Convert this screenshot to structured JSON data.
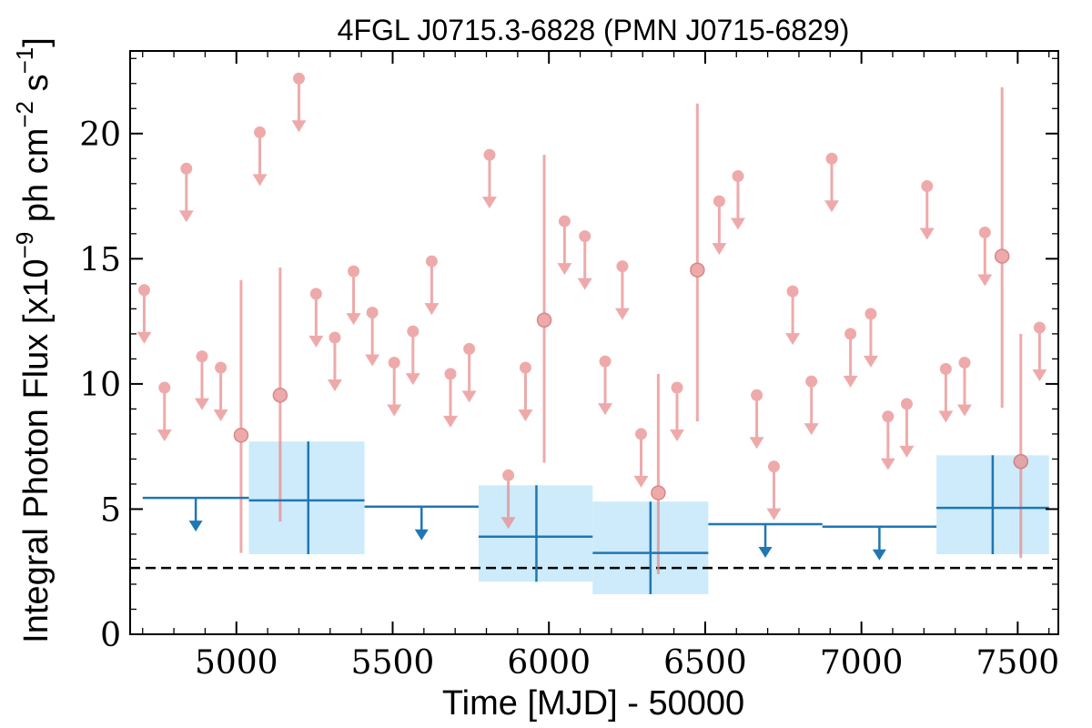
{
  "chart_data": {
    "type": "scatter",
    "title": "4FGL J0715.3-6828 (PMN J0715-6829)",
    "xlabel": "Time [MJD] - 50000",
    "ylabel": {
      "prefix": "Integral Photon Flux [x10",
      "exp1": "−9",
      "mid": " ph cm",
      "exp2": "−2",
      "mid2": " s",
      "exp3": "−1",
      "suffix": "]"
    },
    "xlim": [
      4660,
      7630
    ],
    "ylim": [
      0,
      23.3
    ],
    "xticks": [
      5000,
      5500,
      6000,
      6500,
      7000,
      7500
    ],
    "yticks": [
      0,
      5,
      10,
      15,
      20
    ],
    "baseline": 2.65,
    "colors": {
      "short_bins": "#e88a8a",
      "long_bins": "#1f77b4",
      "band": "#cdebfa",
      "baseline": "#000000"
    },
    "long_bins": [
      {
        "x0": 4700,
        "x1": 5040,
        "y": 5.45,
        "type": "ul"
      },
      {
        "x0": 5040,
        "x1": 5410,
        "y": 5.35,
        "type": "det",
        "xc": 5230,
        "lo": 3.2,
        "hi": 7.7
      },
      {
        "x0": 5410,
        "x1": 5775,
        "y": 5.1,
        "type": "ul"
      },
      {
        "x0": 5775,
        "x1": 6140,
        "y": 3.9,
        "type": "det",
        "xc": 5960,
        "lo": 2.1,
        "hi": 5.95
      },
      {
        "x0": 6140,
        "x1": 6510,
        "y": 3.25,
        "type": "det",
        "xc": 6325,
        "lo": 1.6,
        "hi": 5.3
      },
      {
        "x0": 6510,
        "x1": 6875,
        "y": 4.4,
        "type": "ul"
      },
      {
        "x0": 6875,
        "x1": 7240,
        "y": 4.3,
        "type": "ul"
      },
      {
        "x0": 7240,
        "x1": 7600,
        "y": 5.05,
        "type": "det",
        "xc": 7420,
        "lo": 3.2,
        "hi": 7.15
      }
    ],
    "short_bins_ul": [
      {
        "x": 4705,
        "y": 13.75
      },
      {
        "x": 4770,
        "y": 9.85
      },
      {
        "x": 4840,
        "y": 18.6
      },
      {
        "x": 4890,
        "y": 11.1
      },
      {
        "x": 4950,
        "y": 10.65
      },
      {
        "x": 5075,
        "y": 20.05
      },
      {
        "x": 5200,
        "y": 22.2
      },
      {
        "x": 5255,
        "y": 13.6
      },
      {
        "x": 5315,
        "y": 11.85
      },
      {
        "x": 5375,
        "y": 14.5
      },
      {
        "x": 5435,
        "y": 12.85
      },
      {
        "x": 5505,
        "y": 10.85
      },
      {
        "x": 5565,
        "y": 12.1
      },
      {
        "x": 5625,
        "y": 14.9
      },
      {
        "x": 5685,
        "y": 10.4
      },
      {
        "x": 5745,
        "y": 11.4
      },
      {
        "x": 5810,
        "y": 19.15
      },
      {
        "x": 5870,
        "y": 6.35
      },
      {
        "x": 5925,
        "y": 10.65
      },
      {
        "x": 6050,
        "y": 16.5
      },
      {
        "x": 6115,
        "y": 15.9
      },
      {
        "x": 6180,
        "y": 10.9
      },
      {
        "x": 6235,
        "y": 14.7
      },
      {
        "x": 6295,
        "y": 8.0
      },
      {
        "x": 6410,
        "y": 9.85
      },
      {
        "x": 6545,
        "y": 17.3
      },
      {
        "x": 6605,
        "y": 18.3
      },
      {
        "x": 6665,
        "y": 9.55
      },
      {
        "x": 6720,
        "y": 6.7
      },
      {
        "x": 6780,
        "y": 13.7
      },
      {
        "x": 6840,
        "y": 10.1
      },
      {
        "x": 6905,
        "y": 19.0
      },
      {
        "x": 6965,
        "y": 12.0
      },
      {
        "x": 7030,
        "y": 12.8
      },
      {
        "x": 7085,
        "y": 8.7
      },
      {
        "x": 7145,
        "y": 9.2
      },
      {
        "x": 7210,
        "y": 17.9
      },
      {
        "x": 7270,
        "y": 10.6
      },
      {
        "x": 7330,
        "y": 10.85
      },
      {
        "x": 7395,
        "y": 16.05
      },
      {
        "x": 7570,
        "y": 12.25
      }
    ],
    "short_bins_det": [
      {
        "x": 5015,
        "y": 7.95,
        "lo": 3.25,
        "hi": 14.15
      },
      {
        "x": 5140,
        "y": 9.55,
        "lo": 4.5,
        "hi": 14.65
      },
      {
        "x": 5985,
        "y": 12.55,
        "lo": 6.85,
        "hi": 19.15
      },
      {
        "x": 6350,
        "y": 5.65,
        "lo": 2.4,
        "hi": 10.4
      },
      {
        "x": 6475,
        "y": 14.55,
        "lo": 8.5,
        "hi": 21.2
      },
      {
        "x": 7450,
        "y": 15.1,
        "lo": 9.05,
        "hi": 21.85
      },
      {
        "x": 7510,
        "y": 6.9,
        "lo": 3.05,
        "hi": 12.0
      }
    ]
  }
}
